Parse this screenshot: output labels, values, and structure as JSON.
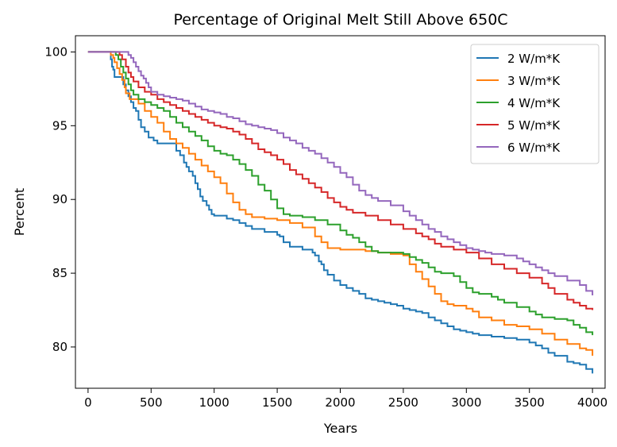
{
  "chart_data": {
    "type": "line",
    "title": "Percentage of Original Melt Still Above 650C",
    "xlabel": "Years",
    "ylabel": "Percent",
    "xlim": [
      -100,
      4100
    ],
    "ylim": [
      77.2,
      101.1
    ],
    "xticks": [
      0,
      500,
      1000,
      1500,
      2000,
      2500,
      3000,
      3500,
      4000
    ],
    "yticks": [
      80,
      85,
      90,
      95,
      100
    ],
    "grid": false,
    "legend_position": "top-right",
    "series": [
      {
        "name": "2 W/m*K",
        "color": "#1f77b4",
        "x": [
          0,
          170,
          180,
          190,
          200,
          210,
          260,
          280,
          300,
          320,
          340,
          360,
          380,
          400,
          420,
          450,
          480,
          520,
          550,
          600,
          650,
          700,
          730,
          760,
          780,
          800,
          830,
          850,
          870,
          890,
          910,
          940,
          960,
          980,
          1000,
          1100,
          1150,
          1200,
          1250,
          1300,
          1400,
          1500,
          1520,
          1550,
          1600,
          1700,
          1780,
          1800,
          1830,
          1850,
          1870,
          1900,
          1950,
          2000,
          2050,
          2100,
          2150,
          2200,
          2250,
          2300,
          2350,
          2400,
          2450,
          2500,
          2550,
          2600,
          2650,
          2700,
          2750,
          2800,
          2850,
          2900,
          2950,
          3000,
          3050,
          3100,
          3200,
          3300,
          3400,
          3500,
          3550,
          3600,
          3650,
          3700,
          3800,
          3850,
          3900,
          3950,
          4000
        ],
        "y": [
          100,
          100,
          99.5,
          99.0,
          98.8,
          98.3,
          98.3,
          97.8,
          97.4,
          97.0,
          96.6,
          96.2,
          96.0,
          95.4,
          94.9,
          94.6,
          94.2,
          94.0,
          93.8,
          93.8,
          93.8,
          93.3,
          93.0,
          92.5,
          92.2,
          91.9,
          91.6,
          91.1,
          90.7,
          90.2,
          89.9,
          89.6,
          89.3,
          89.0,
          88.9,
          88.7,
          88.6,
          88.4,
          88.2,
          88.0,
          87.8,
          87.6,
          87.5,
          87.1,
          86.8,
          86.6,
          86.4,
          86.2,
          85.8,
          85.6,
          85.2,
          84.9,
          84.5,
          84.2,
          84.0,
          83.8,
          83.6,
          83.3,
          83.2,
          83.1,
          83.0,
          82.9,
          82.8,
          82.6,
          82.5,
          82.4,
          82.3,
          82.0,
          81.8,
          81.6,
          81.4,
          81.2,
          81.1,
          81.0,
          80.9,
          80.8,
          80.7,
          80.6,
          80.5,
          80.3,
          80.1,
          79.9,
          79.6,
          79.4,
          79.0,
          78.9,
          78.8,
          78.5,
          78.2
        ]
      },
      {
        "name": "3 W/m*K",
        "color": "#ff7f0e",
        "x": [
          0,
          180,
          200,
          210,
          230,
          250,
          270,
          290,
          300,
          330,
          370,
          400,
          450,
          500,
          550,
          600,
          650,
          700,
          750,
          800,
          850,
          900,
          950,
          1000,
          1050,
          1100,
          1150,
          1200,
          1250,
          1300,
          1400,
          1500,
          1600,
          1700,
          1800,
          1850,
          1900,
          2000,
          2100,
          2200,
          2300,
          2400,
          2500,
          2550,
          2600,
          2650,
          2700,
          2750,
          2800,
          2850,
          2900,
          3000,
          3050,
          3100,
          3200,
          3300,
          3400,
          3500,
          3600,
          3700,
          3800,
          3900,
          3950,
          4000
        ],
        "y": [
          100,
          99.8,
          99.6,
          99.3,
          98.9,
          98.5,
          98.1,
          97.6,
          97.2,
          96.8,
          96.8,
          96.5,
          96.0,
          95.6,
          95.2,
          94.6,
          94.1,
          93.8,
          93.5,
          93.1,
          92.7,
          92.3,
          91.9,
          91.5,
          91.1,
          90.4,
          89.8,
          89.3,
          89.0,
          88.8,
          88.7,
          88.6,
          88.4,
          88.1,
          87.5,
          87.1,
          86.7,
          86.6,
          86.6,
          86.5,
          86.4,
          86.3,
          86.2,
          85.6,
          85.1,
          84.6,
          84.1,
          83.6,
          83.1,
          82.9,
          82.8,
          82.6,
          82.4,
          82.0,
          81.8,
          81.5,
          81.4,
          81.2,
          80.9,
          80.5,
          80.2,
          79.9,
          79.8,
          79.4
        ]
      },
      {
        "name": "4 W/m*K",
        "color": "#2ca02c",
        "x": [
          0,
          200,
          220,
          240,
          260,
          280,
          300,
          320,
          340,
          360,
          400,
          450,
          500,
          550,
          600,
          650,
          700,
          750,
          800,
          850,
          900,
          950,
          1000,
          1050,
          1100,
          1150,
          1200,
          1250,
          1300,
          1350,
          1400,
          1450,
          1500,
          1550,
          1600,
          1700,
          1800,
          1900,
          2000,
          2050,
          2100,
          2150,
          2200,
          2250,
          2300,
          2400,
          2500,
          2550,
          2600,
          2650,
          2700,
          2750,
          2800,
          2900,
          2950,
          3000,
          3050,
          3100,
          3200,
          3250,
          3300,
          3400,
          3500,
          3550,
          3600,
          3700,
          3800,
          3850,
          3900,
          3950,
          4000
        ],
        "y": [
          100,
          100,
          99.8,
          99.5,
          99.0,
          98.6,
          98.2,
          97.8,
          97.4,
          97.1,
          96.8,
          96.6,
          96.4,
          96.2,
          96.0,
          95.6,
          95.2,
          94.9,
          94.6,
          94.3,
          94.0,
          93.6,
          93.3,
          93.1,
          93.0,
          92.7,
          92.4,
          92.0,
          91.6,
          91.0,
          90.6,
          90.0,
          89.4,
          89.0,
          88.9,
          88.8,
          88.6,
          88.3,
          87.9,
          87.6,
          87.4,
          87.1,
          86.8,
          86.5,
          86.4,
          86.4,
          86.3,
          86.1,
          85.9,
          85.7,
          85.4,
          85.1,
          85.0,
          84.8,
          84.4,
          84.0,
          83.7,
          83.6,
          83.4,
          83.2,
          83.0,
          82.7,
          82.4,
          82.2,
          82.0,
          81.9,
          81.8,
          81.5,
          81.3,
          81.0,
          80.8
        ]
      },
      {
        "name": "5 W/m*K",
        "color": "#d62728",
        "x": [
          0,
          230,
          250,
          270,
          300,
          320,
          340,
          360,
          400,
          450,
          500,
          550,
          600,
          650,
          700,
          750,
          800,
          850,
          900,
          950,
          1000,
          1050,
          1100,
          1150,
          1200,
          1250,
          1300,
          1350,
          1400,
          1450,
          1500,
          1550,
          1600,
          1650,
          1700,
          1750,
          1800,
          1850,
          1900,
          1950,
          2000,
          2050,
          2100,
          2200,
          2300,
          2400,
          2500,
          2600,
          2650,
          2700,
          2750,
          2800,
          2900,
          3000,
          3100,
          3200,
          3300,
          3400,
          3500,
          3600,
          3650,
          3700,
          3800,
          3850,
          3900,
          3950,
          4000
        ],
        "y": [
          100,
          100,
          99.8,
          99.5,
          99.0,
          98.6,
          98.3,
          98.0,
          97.6,
          97.3,
          97.1,
          96.8,
          96.6,
          96.4,
          96.2,
          96.0,
          95.8,
          95.6,
          95.4,
          95.2,
          95.0,
          94.9,
          94.8,
          94.6,
          94.4,
          94.1,
          93.8,
          93.4,
          93.2,
          93.0,
          92.7,
          92.4,
          92.0,
          91.7,
          91.4,
          91.1,
          90.8,
          90.5,
          90.1,
          89.8,
          89.5,
          89.3,
          89.1,
          88.9,
          88.6,
          88.3,
          88.0,
          87.7,
          87.5,
          87.3,
          87.0,
          86.8,
          86.6,
          86.4,
          86.0,
          85.6,
          85.3,
          85.0,
          84.7,
          84.3,
          84.0,
          83.6,
          83.2,
          83.0,
          82.8,
          82.6,
          82.5
        ]
      },
      {
        "name": "6 W/m*K",
        "color": "#9467bd",
        "x": [
          0,
          300,
          320,
          340,
          360,
          380,
          400,
          420,
          440,
          460,
          480,
          500,
          550,
          600,
          650,
          700,
          750,
          800,
          850,
          900,
          950,
          1000,
          1050,
          1100,
          1150,
          1200,
          1250,
          1300,
          1350,
          1400,
          1450,
          1500,
          1550,
          1600,
          1650,
          1700,
          1750,
          1800,
          1850,
          1900,
          1950,
          2000,
          2050,
          2100,
          2150,
          2200,
          2250,
          2300,
          2400,
          2500,
          2550,
          2600,
          2650,
          2700,
          2750,
          2800,
          2850,
          2900,
          2950,
          3000,
          3050,
          3100,
          3150,
          3200,
          3300,
          3400,
          3450,
          3500,
          3550,
          3600,
          3650,
          3700,
          3800,
          3900,
          3950,
          4000
        ],
        "y": [
          100,
          100,
          99.8,
          99.6,
          99.3,
          99.0,
          98.7,
          98.4,
          98.2,
          97.9,
          97.6,
          97.3,
          97.1,
          97.0,
          96.9,
          96.8,
          96.7,
          96.5,
          96.3,
          96.1,
          96.0,
          95.9,
          95.8,
          95.6,
          95.5,
          95.3,
          95.1,
          95.0,
          94.9,
          94.8,
          94.7,
          94.5,
          94.2,
          94.0,
          93.8,
          93.5,
          93.3,
          93.1,
          92.8,
          92.5,
          92.2,
          91.8,
          91.5,
          91.0,
          90.6,
          90.3,
          90.1,
          89.9,
          89.6,
          89.2,
          88.9,
          88.6,
          88.3,
          88.0,
          87.8,
          87.5,
          87.3,
          87.1,
          86.9,
          86.7,
          86.6,
          86.5,
          86.4,
          86.3,
          86.2,
          86.0,
          85.8,
          85.6,
          85.4,
          85.2,
          85.0,
          84.8,
          84.5,
          84.2,
          83.8,
          83.5
        ]
      }
    ]
  }
}
